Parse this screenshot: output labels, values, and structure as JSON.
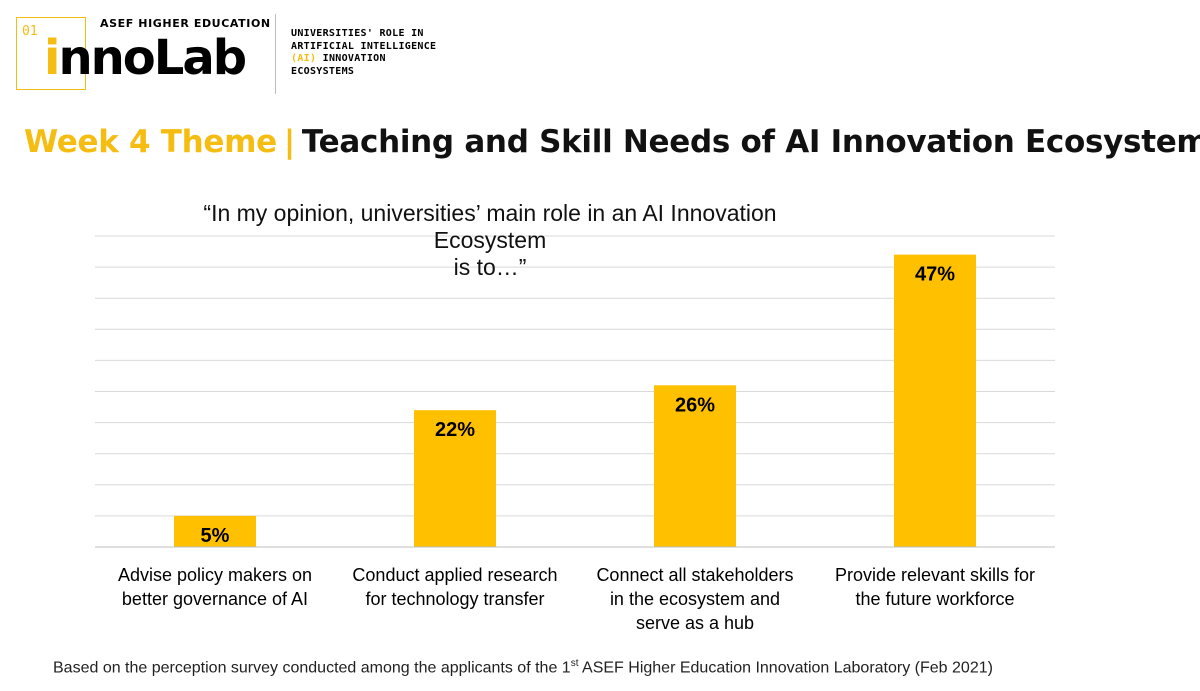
{
  "branding": {
    "number": "01",
    "org": "ASEF HIGHER EDUCATION",
    "wordmark_first": "i",
    "wordmark_rest": "nnoLab",
    "program_line1": "UNIVERSITIES' ROLE IN",
    "program_line2": "ARTIFICIAL INTELLIGENCE",
    "program_line3_highlight": "(AI)",
    "program_line3_rest": " INNOVATION",
    "program_line4": "ECOSYSTEMS"
  },
  "headline": {
    "theme": "Week 4 Theme",
    "separator": "|",
    "topic": "Teaching and Skill Needs of AI Innovation Ecosystems"
  },
  "footer": {
    "text_before": "Based on the perception survey conducted among the applicants of the 1",
    "superscript": "st",
    "text_after": " ASEF Higher Education Innovation Laboratory (Feb 2021)"
  },
  "colors": {
    "accent": "#f5bd12",
    "bar": "#ffc000",
    "gridline": "#d9d9d9",
    "text": "#000000"
  },
  "chart_data": {
    "type": "bar",
    "title_line1": "“In my opinion, universities’ main role in an AI Innovation Ecosystem",
    "title_line2": "is to…”",
    "categories": [
      [
        "Advise policy makers on",
        "better governance of AI"
      ],
      [
        "Conduct applied research",
        "for technology transfer"
      ],
      [
        "Connect all stakeholders",
        "in the ecosystem and",
        "serve as a hub"
      ],
      [
        "Provide relevant skills for",
        "the future workforce"
      ]
    ],
    "values": [
      5,
      22,
      26,
      47
    ],
    "value_labels": [
      "5%",
      "22%",
      "26%",
      "47%"
    ],
    "ylim": [
      0,
      50
    ],
    "grid_step": 5,
    "grid": true,
    "legend": "none"
  }
}
